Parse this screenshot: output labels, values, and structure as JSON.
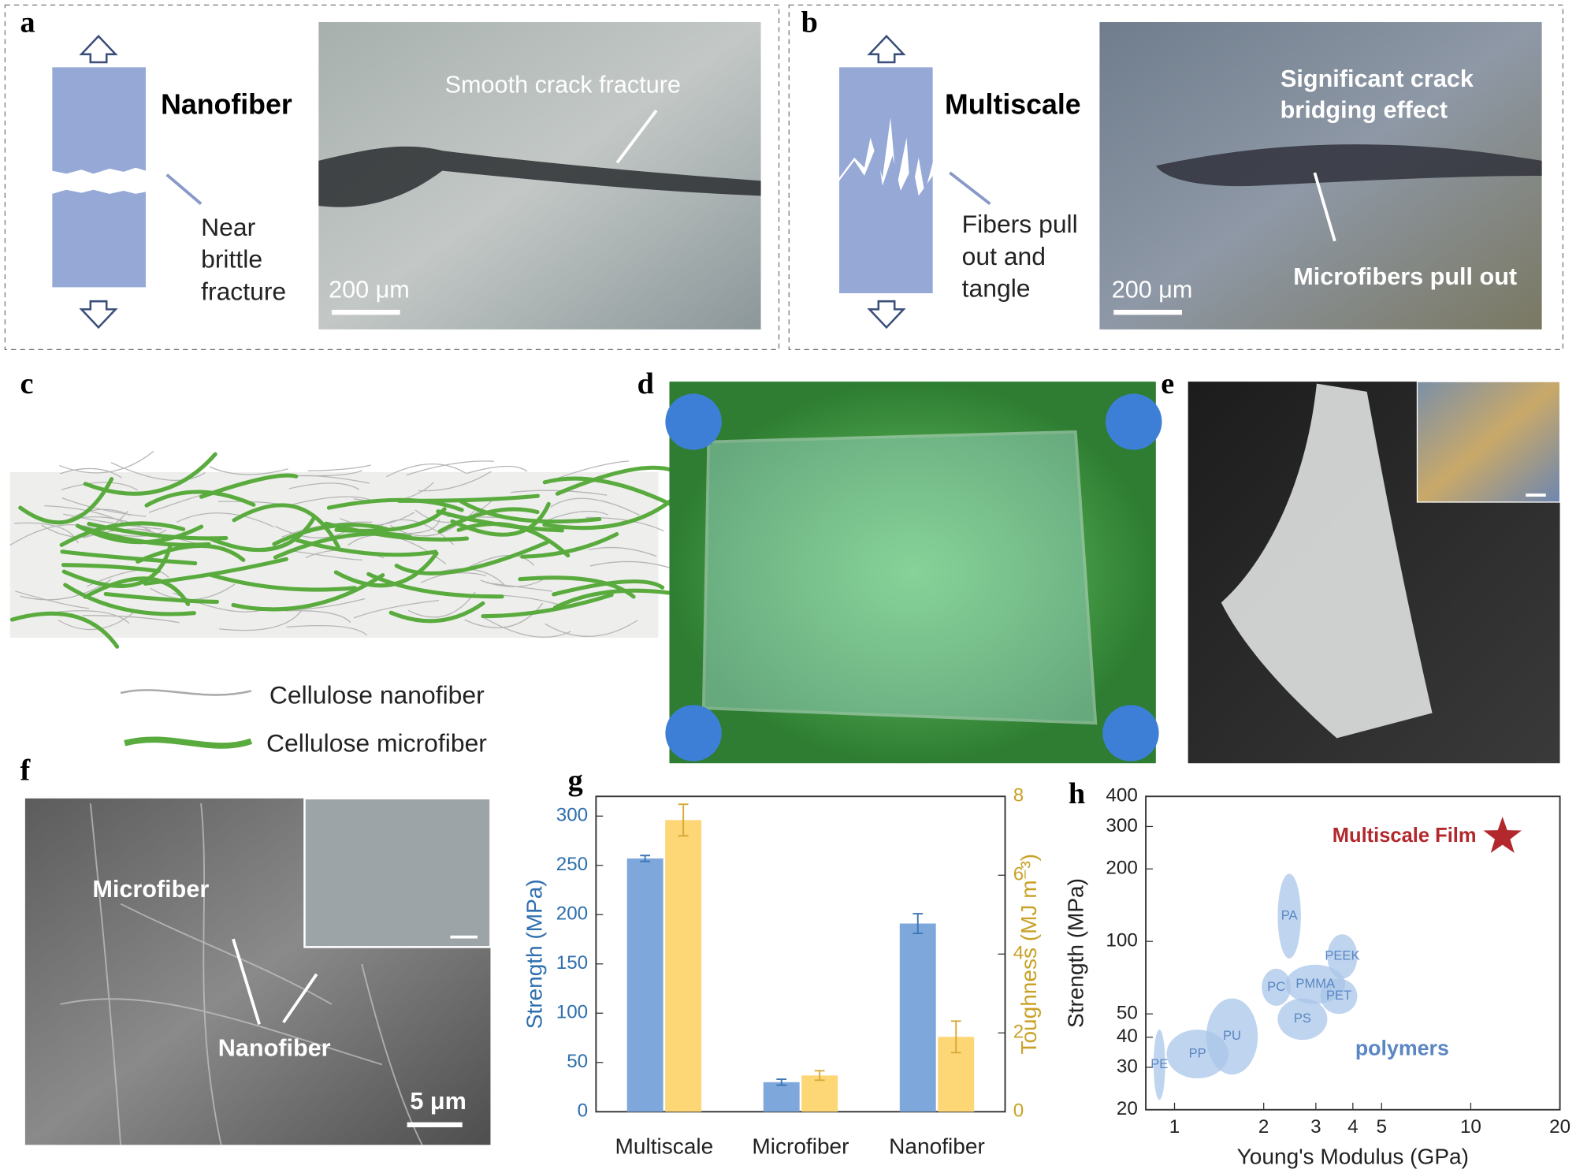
{
  "panels": {
    "a": {
      "label": "a",
      "title": "Nanofiber",
      "note": [
        "Near",
        "brittle",
        "fracture"
      ],
      "photo_caption": "Smooth crack fracture",
      "scale_bar": "200 μm"
    },
    "b": {
      "label": "b",
      "title": "Multiscale",
      "note": [
        "Fibers pull",
        "out and",
        "tangle"
      ],
      "photo_caption": [
        "Significant crack",
        "bridging effect"
      ],
      "photo_caption_2": "Microfibers pull out",
      "scale_bar": "200 μm"
    },
    "c": {
      "label": "c",
      "legend": [
        "Cellulose nanofiber",
        "Cellulose microfiber"
      ]
    },
    "d": {
      "label": "d"
    },
    "e": {
      "label": "e"
    },
    "f": {
      "label": "f",
      "annotations": [
        "Microfiber",
        "Nanofiber"
      ],
      "scale_bar": "5 μm"
    },
    "g": {
      "label": "g"
    },
    "h": {
      "label": "h"
    }
  },
  "chart_data": [
    {
      "type": "bar",
      "categories": [
        "Multiscale",
        "Microfiber",
        "Nanofiber"
      ],
      "series": [
        {
          "color": "#7ea8dc",
          "values": [
            257,
            30,
            191
          ],
          "errors": [
            3,
            3,
            10
          ]
        },
        {
          "color": "#fdd676",
          "axis": "y2",
          "values": [
            7.4,
            0.92,
            1.9
          ],
          "errors": [
            0.4,
            0.12,
            0.4
          ]
        }
      ],
      "ylabel": "Strength (MPa)",
      "y2label": "Toughness (MJ m⁻³)",
      "ylim": [
        0,
        320
      ],
      "yticks": [
        0,
        50,
        100,
        150,
        200,
        250,
        300
      ],
      "y2lim": [
        0,
        8
      ],
      "y2ticks": [
        0,
        2,
        4,
        6,
        8
      ]
    },
    {
      "type": "scatter",
      "xlabel": "Young's Modulus (GPa)",
      "ylabel": "Strength (MPa)",
      "log_x": true,
      "log_y": true,
      "xlim": [
        0.8,
        20
      ],
      "ylim": [
        20,
        400
      ],
      "xticks": [
        1,
        2,
        3,
        4,
        5,
        10,
        20
      ],
      "yticks": [
        20,
        30,
        40,
        50,
        100,
        200,
        300,
        400
      ],
      "region_color": "#a9c5e8",
      "regions": [
        {
          "name": "PE",
          "x": [
            0.85,
            0.93
          ],
          "y": [
            22,
            43
          ]
        },
        {
          "name": "PP",
          "x": [
            0.94,
            1.52
          ],
          "y": [
            27,
            43
          ]
        },
        {
          "name": "PU",
          "x": [
            1.28,
            1.91
          ],
          "y": [
            28,
            58
          ]
        },
        {
          "name": "PA",
          "x": [
            2.23,
            2.67
          ],
          "y": [
            85,
            191
          ]
        },
        {
          "name": "PC",
          "x": [
            1.97,
            2.47
          ],
          "y": [
            54,
            77
          ]
        },
        {
          "name": "PMMA",
          "x": [
            2.37,
            3.77
          ],
          "y": [
            55,
            80
          ]
        },
        {
          "name": "PET",
          "x": [
            3.11,
            4.14
          ],
          "y": [
            50,
            70
          ]
        },
        {
          "name": "PS",
          "x": [
            2.23,
            3.28
          ],
          "y": [
            39,
            58
          ]
        },
        {
          "name": "PEEK",
          "x": [
            3.28,
            4.14
          ],
          "y": [
            70,
            107
          ]
        }
      ],
      "series": [
        {
          "name": "Multiscale Film",
          "color": "#b3282d",
          "x": [
            12.8
          ],
          "values": [
            272
          ]
        }
      ],
      "annotations": [
        "polymers"
      ]
    }
  ]
}
